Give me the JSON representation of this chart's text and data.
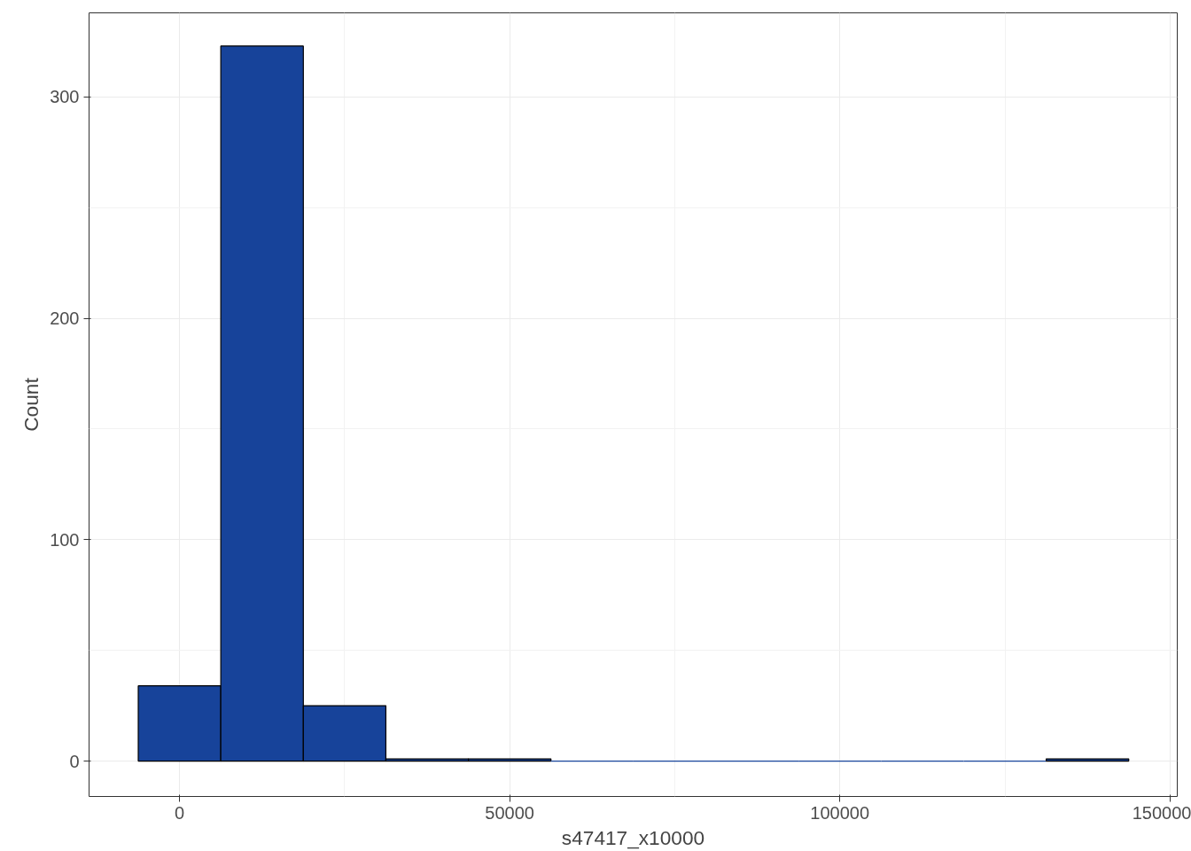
{
  "chart_data": {
    "type": "histogram",
    "xlabel": "s47417_x10000",
    "ylabel": "Count",
    "color": "#17439a",
    "bins": [
      -6250,
      6250,
      18750,
      31250,
      43750,
      56250,
      68750,
      81250,
      93750,
      106250,
      118750,
      131250,
      143750
    ],
    "values": [
      34,
      323,
      25,
      1,
      1,
      0,
      0,
      0,
      0,
      0,
      0,
      1
    ],
    "xlim": [
      -13700,
      151100
    ],
    "ylim": [
      -16,
      338
    ],
    "xticks": [
      0,
      50000,
      100000,
      150000
    ],
    "yticks": [
      0,
      100,
      200,
      300
    ],
    "grid": true
  }
}
